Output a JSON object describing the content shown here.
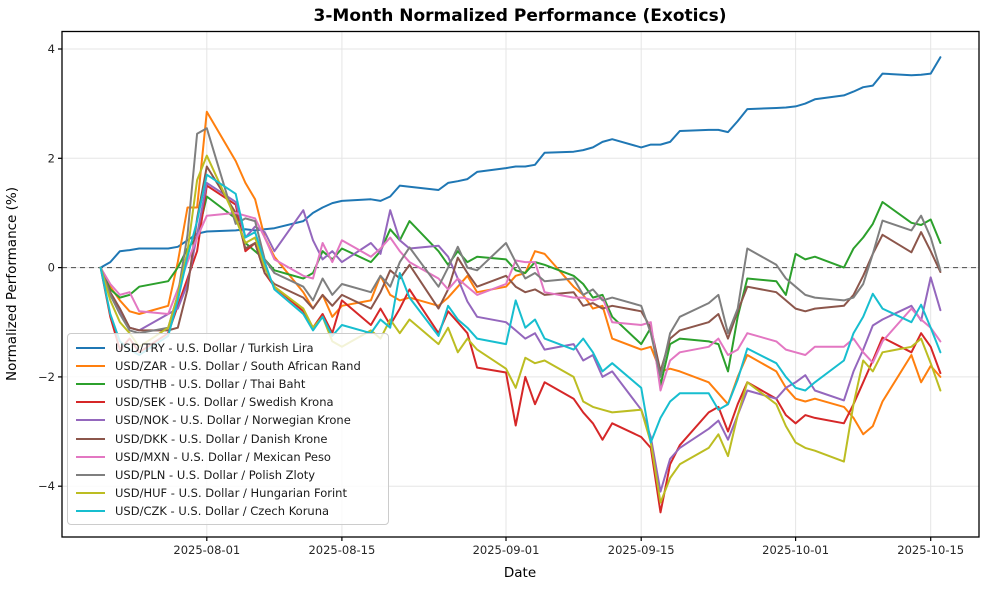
{
  "accent_colors": {
    "background": "#ffffff",
    "grid": "#e5e5e5",
    "spine": "#000000",
    "zero_line": "#4d4d4d",
    "legend_border": "#cccccc"
  },
  "chart_data": {
    "type": "line",
    "title": "3-Month Normalized Performance (Exotics)",
    "xlabel": "Date",
    "ylabel": "Normalized Performance (%)",
    "grid": true,
    "zero_line_dashed": true,
    "legend_position": "lower left",
    "xlim": [
      "2025-07-17",
      "2025-10-20"
    ],
    "ylim": [
      -4.93,
      4.32
    ],
    "x_ticks": [
      "2025-08-01",
      "2025-08-15",
      "2025-09-01",
      "2025-09-15",
      "2025-10-01",
      "2025-10-15"
    ],
    "x_tick_labels": [
      "2025-08-01",
      "2025-08-15",
      "2025-09-01",
      "2025-09-15",
      "2025-10-01",
      "2025-10-15"
    ],
    "y_ticks": [
      4,
      2,
      0,
      -2,
      -4
    ],
    "y_tick_labels": [
      "4",
      "2",
      "0",
      "−2",
      "−4"
    ],
    "x": [
      "2025-07-21",
      "2025-07-22",
      "2025-07-23",
      "2025-07-24",
      "2025-07-25",
      "2025-07-28",
      "2025-07-29",
      "2025-07-30",
      "2025-07-31",
      "2025-08-01",
      "2025-08-04",
      "2025-08-05",
      "2025-08-06",
      "2025-08-07",
      "2025-08-08",
      "2025-08-11",
      "2025-08-12",
      "2025-08-13",
      "2025-08-14",
      "2025-08-15",
      "2025-08-18",
      "2025-08-19",
      "2025-08-20",
      "2025-08-21",
      "2025-08-22",
      "2025-08-25",
      "2025-08-26",
      "2025-08-27",
      "2025-08-28",
      "2025-08-29",
      "2025-09-01",
      "2025-09-02",
      "2025-09-03",
      "2025-09-04",
      "2025-09-05",
      "2025-09-08",
      "2025-09-09",
      "2025-09-10",
      "2025-09-11",
      "2025-09-12",
      "2025-09-15",
      "2025-09-16",
      "2025-09-17",
      "2025-09-18",
      "2025-09-19",
      "2025-09-22",
      "2025-09-23",
      "2025-09-24",
      "2025-09-25",
      "2025-09-26",
      "2025-09-29",
      "2025-09-30",
      "2025-10-01",
      "2025-10-02",
      "2025-10-03",
      "2025-10-06",
      "2025-10-07",
      "2025-10-08",
      "2025-10-09",
      "2025-10-10",
      "2025-10-13",
      "2025-10-14",
      "2025-10-15",
      "2025-10-16"
    ],
    "series": [
      {
        "pair": "USD/TRY",
        "name": "USD/TRY - U.S. Dollar / Turkish Lira",
        "color": "#1f77b4",
        "values": [
          0,
          0.1,
          0.3,
          0.32,
          0.35,
          0.35,
          0.38,
          0.5,
          0.62,
          0.66,
          0.68,
          0.7,
          0.68,
          0.7,
          0.72,
          0.85,
          1.0,
          1.1,
          1.18,
          1.22,
          1.25,
          1.22,
          1.3,
          1.5,
          1.48,
          1.42,
          1.55,
          1.58,
          1.62,
          1.75,
          1.82,
          1.85,
          1.85,
          1.88,
          2.1,
          2.12,
          2.15,
          2.2,
          2.3,
          2.35,
          2.2,
          2.25,
          2.25,
          2.3,
          2.5,
          2.52,
          2.52,
          2.48,
          2.68,
          2.9,
          2.92,
          2.93,
          2.95,
          3.0,
          3.08,
          3.15,
          3.22,
          3.3,
          3.33,
          3.55,
          3.52,
          3.53,
          3.55,
          3.85
        ]
      },
      {
        "pair": "USD/ZAR",
        "name": "USD/ZAR - U.S. Dollar / South African Rand",
        "color": "#ff7f0e",
        "values": [
          0,
          -0.35,
          -0.6,
          -0.8,
          -0.85,
          -0.7,
          0.1,
          1.1,
          1.1,
          2.85,
          1.95,
          1.55,
          1.25,
          0.55,
          0.2,
          -0.45,
          -0.75,
          -0.5,
          -0.9,
          -0.7,
          -0.6,
          -0.15,
          -0.5,
          -0.6,
          -0.55,
          -0.7,
          -0.55,
          -0.35,
          -0.15,
          -0.45,
          -0.35,
          -0.15,
          -0.1,
          0.3,
          0.25,
          -0.35,
          -0.5,
          -0.75,
          -0.7,
          -1.3,
          -1.5,
          -1.45,
          -1.9,
          -1.85,
          -1.9,
          -2.1,
          -2.3,
          -2.5,
          -2.0,
          -1.6,
          -1.9,
          -2.2,
          -2.4,
          -2.45,
          -2.4,
          -2.55,
          -2.75,
          -3.05,
          -2.9,
          -2.45,
          -1.6,
          -2.1,
          -1.8,
          -2.0
        ]
      },
      {
        "pair": "USD/THB",
        "name": "USD/THB - U.S. Dollar / Thai Baht",
        "color": "#2ca02c",
        "values": [
          0,
          -0.4,
          -0.55,
          -0.5,
          -0.35,
          -0.25,
          0.0,
          0.35,
          0.55,
          1.3,
          0.9,
          0.45,
          0.3,
          0.15,
          -0.05,
          -0.2,
          -0.1,
          0.3,
          0.15,
          0.35,
          0.1,
          0.3,
          0.7,
          0.5,
          0.85,
          0.3,
          0.05,
          0.3,
          0.1,
          0.2,
          0.15,
          -0.05,
          -0.1,
          0.1,
          0.05,
          -0.15,
          -0.3,
          -0.55,
          -0.5,
          -0.9,
          -1.4,
          -1.1,
          -2.15,
          -1.4,
          -1.3,
          -1.35,
          -1.4,
          -1.9,
          -0.9,
          -0.2,
          -0.25,
          -0.5,
          0.25,
          0.15,
          0.2,
          0.0,
          0.35,
          0.55,
          0.8,
          1.2,
          0.82,
          0.78,
          0.88,
          0.45
        ]
      },
      {
        "pair": "USD/SEK",
        "name": "USD/SEK - U.S. Dollar / Swedish Krona",
        "color": "#d62728",
        "values": [
          0,
          -0.9,
          -1.5,
          -1.3,
          -1.55,
          -1.2,
          -0.7,
          -0.2,
          0.3,
          1.5,
          1.15,
          0.3,
          0.45,
          -0.1,
          -0.35,
          -0.8,
          -1.1,
          -0.85,
          -1.2,
          -0.6,
          -1.05,
          -0.75,
          -1.05,
          -0.75,
          -0.4,
          -1.2,
          -0.8,
          -1.0,
          -1.2,
          -1.83,
          -1.92,
          -2.89,
          -2.0,
          -2.5,
          -2.1,
          -2.4,
          -2.65,
          -2.85,
          -3.15,
          -2.85,
          -3.1,
          -3.3,
          -4.48,
          -3.6,
          -3.25,
          -2.65,
          -2.55,
          -3.0,
          -2.5,
          -2.1,
          -2.4,
          -2.7,
          -2.85,
          -2.7,
          -2.75,
          -2.85,
          -2.5,
          -2.1,
          -1.7,
          -1.28,
          -1.55,
          -1.2,
          -1.45,
          -1.93
        ]
      },
      {
        "pair": "USD/NOK",
        "name": "USD/NOK - U.S. Dollar / Norwegian Krone",
        "color": "#9467bd",
        "values": [
          0,
          -0.5,
          -0.8,
          -1.1,
          -1.15,
          -0.85,
          -0.75,
          -0.3,
          0.6,
          1.55,
          1.2,
          0.55,
          0.75,
          0.65,
          0.3,
          1.05,
          0.5,
          0.15,
          0.3,
          0.1,
          0.45,
          0.25,
          1.05,
          0.5,
          0.35,
          0.4,
          0.2,
          -0.2,
          -0.62,
          -0.9,
          -1.0,
          -1.15,
          -1.3,
          -1.2,
          -1.5,
          -1.4,
          -1.7,
          -1.6,
          -2.0,
          -1.9,
          -2.6,
          -3.1,
          -4.1,
          -3.5,
          -3.3,
          -2.95,
          -2.8,
          -3.15,
          -2.7,
          -2.25,
          -2.4,
          -2.2,
          -2.1,
          -1.97,
          -2.25,
          -2.43,
          -1.9,
          -1.5,
          -1.06,
          -0.95,
          -0.7,
          -0.97,
          -0.18,
          -0.78
        ]
      },
      {
        "pair": "USD/DKK",
        "name": "USD/DKK - U.S. Dollar / Danish Krone",
        "color": "#8c564b",
        "values": [
          0,
          -0.45,
          -0.75,
          -1.1,
          -1.15,
          -1.15,
          -1.1,
          -0.4,
          0.9,
          1.85,
          1.0,
          0.35,
          0.45,
          -0.1,
          -0.3,
          -0.55,
          -0.75,
          -0.5,
          -0.7,
          -0.5,
          -0.75,
          -0.45,
          -0.05,
          -0.2,
          0.05,
          -0.75,
          -0.4,
          0.18,
          -0.1,
          -0.35,
          -0.15,
          -0.35,
          -0.45,
          -0.4,
          -0.5,
          -0.45,
          -0.7,
          -0.65,
          -0.75,
          -0.7,
          -0.8,
          -1.1,
          -1.9,
          -1.3,
          -1.15,
          -1.0,
          -0.85,
          -1.3,
          -0.8,
          -0.35,
          -0.45,
          -0.6,
          -0.75,
          -0.8,
          -0.75,
          -0.7,
          -0.5,
          -0.15,
          0.25,
          0.6,
          0.28,
          0.65,
          0.3,
          -0.08
        ]
      },
      {
        "pair": "USD/MXN",
        "name": "USD/MXN - U.S. Dollar / Mexican Peso",
        "color": "#e377c2",
        "values": [
          0,
          -0.3,
          -0.5,
          -0.45,
          -0.8,
          -0.85,
          -0.4,
          0.1,
          0.55,
          0.95,
          1.0,
          0.95,
          0.9,
          0.55,
          0.15,
          -0.15,
          -0.2,
          0.45,
          0.1,
          0.5,
          0.2,
          0.35,
          0.55,
          0.3,
          0.1,
          -0.2,
          -0.4,
          -0.2,
          -0.35,
          -0.5,
          -0.3,
          0.13,
          0.1,
          0.1,
          -0.45,
          -0.55,
          -0.55,
          -0.6,
          -0.55,
          -1.0,
          -1.05,
          -1.0,
          -2.25,
          -1.7,
          -1.55,
          -1.45,
          -1.3,
          -1.6,
          -1.5,
          -1.2,
          -1.35,
          -1.5,
          -1.55,
          -1.6,
          -1.45,
          -1.45,
          -1.3,
          -1.55,
          -1.74,
          -1.35,
          -0.75,
          -0.95,
          -1.1,
          -1.35
        ]
      },
      {
        "pair": "USD/PLN",
        "name": "USD/PLN - U.S. Dollar / Polish Zloty",
        "color": "#7f7f7f",
        "values": [
          0,
          -0.5,
          -0.85,
          -1.15,
          -1.2,
          -1.1,
          -0.5,
          0.6,
          2.45,
          2.55,
          0.8,
          0.9,
          0.85,
          0.15,
          -0.1,
          -0.35,
          -0.6,
          -0.2,
          -0.5,
          -0.3,
          -0.45,
          -0.15,
          -0.35,
          0.1,
          0.37,
          -0.35,
          0.0,
          0.38,
          0.0,
          -0.05,
          0.45,
          0.1,
          -0.2,
          -0.1,
          -0.25,
          -0.2,
          -0.5,
          -0.4,
          -0.6,
          -0.55,
          -0.7,
          -1.2,
          -2.0,
          -1.2,
          -0.9,
          -0.65,
          -0.5,
          -1.2,
          -0.75,
          0.35,
          0.05,
          -0.2,
          -0.35,
          -0.5,
          -0.55,
          -0.6,
          -0.55,
          -0.3,
          0.25,
          0.86,
          0.68,
          0.95,
          0.55,
          -0.05
        ]
      },
      {
        "pair": "USD/HUF",
        "name": "USD/HUF - U.S. Dollar / Hungarian Forint",
        "color": "#bcbd22",
        "values": [
          0,
          -0.6,
          -1.0,
          -1.2,
          -1.45,
          -1.1,
          -0.5,
          0.3,
          1.6,
          2.05,
          0.9,
          0.45,
          0.55,
          0.0,
          -0.35,
          -0.75,
          -1.1,
          -0.9,
          -1.35,
          -1.45,
          -1.15,
          -1.3,
          -0.95,
          -1.2,
          -0.95,
          -1.4,
          -1.1,
          -1.55,
          -1.3,
          -1.5,
          -1.85,
          -2.2,
          -1.65,
          -1.75,
          -1.7,
          -2.0,
          -2.45,
          -2.55,
          -2.6,
          -2.65,
          -2.6,
          -3.2,
          -4.3,
          -3.85,
          -3.6,
          -3.3,
          -3.05,
          -3.45,
          -2.7,
          -2.1,
          -2.5,
          -2.9,
          -3.2,
          -3.3,
          -3.35,
          -3.55,
          -2.5,
          -1.7,
          -1.9,
          -1.55,
          -1.45,
          -1.3,
          -1.75,
          -2.25
        ]
      },
      {
        "pair": "USD/CZK",
        "name": "USD/CZK - U.S. Dollar / Czech Koruna",
        "color": "#17becf",
        "values": [
          0,
          -0.85,
          -1.35,
          -1.5,
          -1.6,
          -1.25,
          -0.6,
          0.2,
          0.85,
          1.7,
          1.35,
          0.55,
          0.65,
          0.1,
          -0.4,
          -0.85,
          -1.15,
          -0.9,
          -1.25,
          -1.05,
          -1.2,
          -0.95,
          -1.1,
          -0.1,
          -0.55,
          -1.25,
          -0.7,
          -0.95,
          -1.1,
          -1.3,
          -1.4,
          -0.6,
          -1.1,
          -0.95,
          -1.3,
          -1.5,
          -1.3,
          -1.55,
          -1.9,
          -1.75,
          -2.2,
          -3.2,
          -2.75,
          -2.45,
          -2.3,
          -2.3,
          -2.6,
          -2.5,
          -2.05,
          -1.48,
          -1.75,
          -2.0,
          -2.2,
          -2.25,
          -2.1,
          -1.7,
          -1.2,
          -0.9,
          -0.48,
          -0.75,
          -1.0,
          -0.68,
          -1.1,
          -1.55
        ]
      }
    ]
  }
}
